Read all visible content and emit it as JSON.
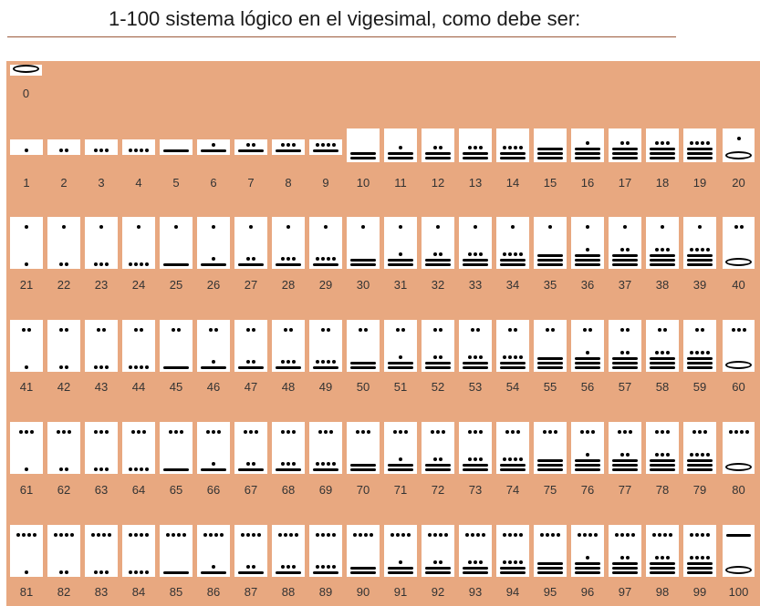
{
  "title": "1-100 sistema lógico en el vigesimal, como debe ser:",
  "zero": {
    "label": "0",
    "digits": [
      0
    ]
  },
  "numbers": [
    {
      "label": "1",
      "digits": [
        1
      ]
    },
    {
      "label": "2",
      "digits": [
        2
      ]
    },
    {
      "label": "3",
      "digits": [
        3
      ]
    },
    {
      "label": "4",
      "digits": [
        4
      ]
    },
    {
      "label": "5",
      "digits": [
        5
      ]
    },
    {
      "label": "6",
      "digits": [
        6
      ]
    },
    {
      "label": "7",
      "digits": [
        7
      ]
    },
    {
      "label": "8",
      "digits": [
        8
      ]
    },
    {
      "label": "9",
      "digits": [
        9
      ]
    },
    {
      "label": "10",
      "digits": [
        10
      ]
    },
    {
      "label": "11",
      "digits": [
        11
      ]
    },
    {
      "label": "12",
      "digits": [
        12
      ]
    },
    {
      "label": "13",
      "digits": [
        13
      ]
    },
    {
      "label": "14",
      "digits": [
        14
      ]
    },
    {
      "label": "15",
      "digits": [
        15
      ]
    },
    {
      "label": "16",
      "digits": [
        16
      ]
    },
    {
      "label": "17",
      "digits": [
        17
      ]
    },
    {
      "label": "18",
      "digits": [
        18
      ]
    },
    {
      "label": "19",
      "digits": [
        19
      ]
    },
    {
      "label": "20",
      "digits": [
        1,
        0
      ]
    },
    {
      "label": "21",
      "digits": [
        1,
        1
      ]
    },
    {
      "label": "22",
      "digits": [
        1,
        2
      ]
    },
    {
      "label": "23",
      "digits": [
        1,
        3
      ]
    },
    {
      "label": "24",
      "digits": [
        1,
        4
      ]
    },
    {
      "label": "25",
      "digits": [
        1,
        5
      ]
    },
    {
      "label": "26",
      "digits": [
        1,
        6
      ]
    },
    {
      "label": "27",
      "digits": [
        1,
        7
      ]
    },
    {
      "label": "28",
      "digits": [
        1,
        8
      ]
    },
    {
      "label": "29",
      "digits": [
        1,
        9
      ]
    },
    {
      "label": "30",
      "digits": [
        1,
        10
      ]
    },
    {
      "label": "31",
      "digits": [
        1,
        11
      ]
    },
    {
      "label": "32",
      "digits": [
        1,
        12
      ]
    },
    {
      "label": "33",
      "digits": [
        1,
        13
      ]
    },
    {
      "label": "34",
      "digits": [
        1,
        14
      ]
    },
    {
      "label": "35",
      "digits": [
        1,
        15
      ]
    },
    {
      "label": "36",
      "digits": [
        1,
        16
      ]
    },
    {
      "label": "37",
      "digits": [
        1,
        17
      ]
    },
    {
      "label": "38",
      "digits": [
        1,
        18
      ]
    },
    {
      "label": "39",
      "digits": [
        1,
        19
      ]
    },
    {
      "label": "40",
      "digits": [
        2,
        0
      ]
    },
    {
      "label": "41",
      "digits": [
        2,
        1
      ]
    },
    {
      "label": "42",
      "digits": [
        2,
        2
      ]
    },
    {
      "label": "43",
      "digits": [
        2,
        3
      ]
    },
    {
      "label": "44",
      "digits": [
        2,
        4
      ]
    },
    {
      "label": "45",
      "digits": [
        2,
        5
      ]
    },
    {
      "label": "46",
      "digits": [
        2,
        6
      ]
    },
    {
      "label": "47",
      "digits": [
        2,
        7
      ]
    },
    {
      "label": "48",
      "digits": [
        2,
        8
      ]
    },
    {
      "label": "49",
      "digits": [
        2,
        9
      ]
    },
    {
      "label": "50",
      "digits": [
        2,
        10
      ]
    },
    {
      "label": "51",
      "digits": [
        2,
        11
      ]
    },
    {
      "label": "52",
      "digits": [
        2,
        12
      ]
    },
    {
      "label": "53",
      "digits": [
        2,
        13
      ]
    },
    {
      "label": "54",
      "digits": [
        2,
        14
      ]
    },
    {
      "label": "55",
      "digits": [
        2,
        15
      ]
    },
    {
      "label": "56",
      "digits": [
        2,
        16
      ]
    },
    {
      "label": "57",
      "digits": [
        2,
        17
      ]
    },
    {
      "label": "58",
      "digits": [
        2,
        18
      ]
    },
    {
      "label": "59",
      "digits": [
        2,
        19
      ]
    },
    {
      "label": "60",
      "digits": [
        3,
        0
      ]
    },
    {
      "label": "61",
      "digits": [
        3,
        1
      ]
    },
    {
      "label": "62",
      "digits": [
        3,
        2
      ]
    },
    {
      "label": "63",
      "digits": [
        3,
        3
      ]
    },
    {
      "label": "64",
      "digits": [
        3,
        4
      ]
    },
    {
      "label": "65",
      "digits": [
        3,
        5
      ]
    },
    {
      "label": "66",
      "digits": [
        3,
        6
      ]
    },
    {
      "label": "67",
      "digits": [
        3,
        7
      ]
    },
    {
      "label": "68",
      "digits": [
        3,
        8
      ]
    },
    {
      "label": "69",
      "digits": [
        3,
        9
      ]
    },
    {
      "label": "70",
      "digits": [
        3,
        10
      ]
    },
    {
      "label": "71",
      "digits": [
        3,
        11
      ]
    },
    {
      "label": "72",
      "digits": [
        3,
        12
      ]
    },
    {
      "label": "73",
      "digits": [
        3,
        13
      ]
    },
    {
      "label": "74",
      "digits": [
        3,
        14
      ]
    },
    {
      "label": "75",
      "digits": [
        3,
        15
      ]
    },
    {
      "label": "76",
      "digits": [
        3,
        16
      ]
    },
    {
      "label": "77",
      "digits": [
        3,
        17
      ]
    },
    {
      "label": "78",
      "digits": [
        3,
        18
      ]
    },
    {
      "label": "79",
      "digits": [
        3,
        19
      ]
    },
    {
      "label": "80",
      "digits": [
        4,
        0
      ]
    },
    {
      "label": "81",
      "digits": [
        4,
        1
      ]
    },
    {
      "label": "82",
      "digits": [
        4,
        2
      ]
    },
    {
      "label": "83",
      "digits": [
        4,
        3
      ]
    },
    {
      "label": "84",
      "digits": [
        4,
        4
      ]
    },
    {
      "label": "85",
      "digits": [
        4,
        5
      ]
    },
    {
      "label": "86",
      "digits": [
        4,
        6
      ]
    },
    {
      "label": "87",
      "digits": [
        4,
        7
      ]
    },
    {
      "label": "88",
      "digits": [
        4,
        8
      ]
    },
    {
      "label": "89",
      "digits": [
        4,
        9
      ]
    },
    {
      "label": "90",
      "digits": [
        4,
        10
      ]
    },
    {
      "label": "91",
      "digits": [
        4,
        11
      ]
    },
    {
      "label": "92",
      "digits": [
        4,
        12
      ]
    },
    {
      "label": "93",
      "digits": [
        4,
        13
      ]
    },
    {
      "label": "94",
      "digits": [
        4,
        14
      ]
    },
    {
      "label": "95",
      "digits": [
        4,
        15
      ]
    },
    {
      "label": "96",
      "digits": [
        4,
        16
      ]
    },
    {
      "label": "97",
      "digits": [
        4,
        17
      ]
    },
    {
      "label": "98",
      "digits": [
        4,
        18
      ]
    },
    {
      "label": "99",
      "digits": [
        4,
        19
      ]
    },
    {
      "label": "100",
      "digits": [
        5,
        0
      ]
    }
  ],
  "colors": {
    "board": "#e8a880",
    "glyph_background": "#ffffff",
    "mark": "#000000",
    "title_rule": "#9c5a3c"
  }
}
